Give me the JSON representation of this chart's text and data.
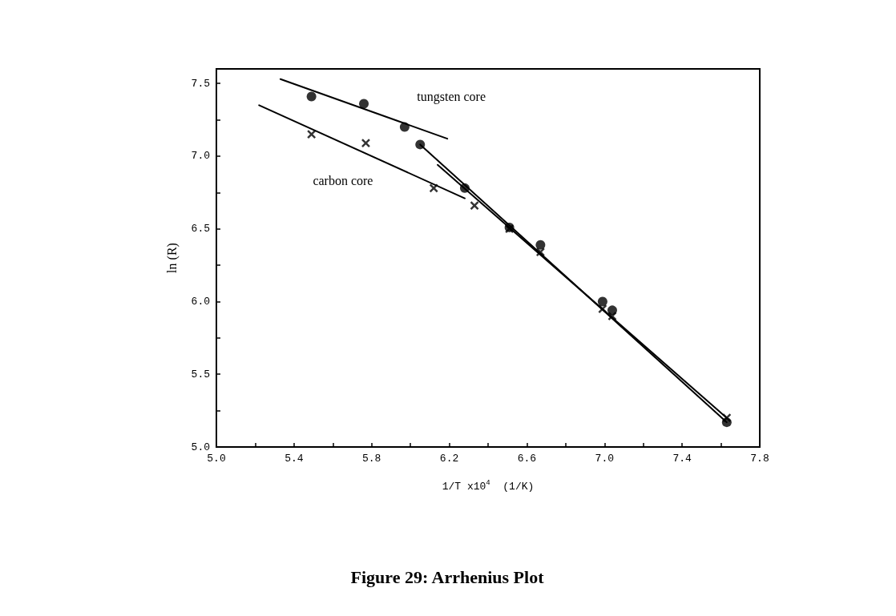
{
  "chart_data": {
    "type": "scatter",
    "title": "Figure 29: Arrhenius Plot",
    "xlabel": "1/T x10$^{4}$  (1/K)",
    "ylabel": "ln (R)",
    "xlim": [
      5.0,
      7.8
    ],
    "xticks": [
      {
        "value": 5.0,
        "label": "5.0"
      },
      {
        "value": 5.2,
        "label": null
      },
      {
        "value": 5.4,
        "label": "5.4"
      },
      {
        "value": 5.6,
        "label": null
      },
      {
        "value": 5.8,
        "label": "5.8"
      },
      {
        "value": 6.0,
        "label": null
      },
      {
        "value": 6.2,
        "label": "6.2"
      },
      {
        "value": 6.4,
        "label": null
      },
      {
        "value": 6.6,
        "label": "6.6"
      },
      {
        "value": 6.8,
        "label": null
      },
      {
        "value": 7.0,
        "label": "7.0"
      },
      {
        "value": 7.2,
        "label": null
      },
      {
        "value": 7.4,
        "label": "7.4"
      },
      {
        "value": 7.6,
        "label": null
      },
      {
        "value": 7.8,
        "label": "7.8"
      }
    ],
    "ylim": [
      5.0,
      7.6
    ],
    "yticks": [
      {
        "value": 5.0,
        "label": "5.0"
      },
      {
        "value": 5.25,
        "label": null
      },
      {
        "value": 5.5,
        "label": "5.5"
      },
      {
        "value": 5.75,
        "label": null
      },
      {
        "value": 6.0,
        "label": "6.0"
      },
      {
        "value": 6.25,
        "label": null
      },
      {
        "value": 6.5,
        "label": "6.5"
      },
      {
        "value": 6.75,
        "label": null
      },
      {
        "value": 7.0,
        "label": "7.0"
      },
      {
        "value": 7.25,
        "label": null
      },
      {
        "value": 7.5,
        "label": "7.5"
      }
    ],
    "grid": false,
    "legend": false,
    "series": [
      {
        "marker": "circle",
        "color": "#000000",
        "x": [
          5.49,
          5.76,
          5.97,
          6.05,
          6.28,
          6.51,
          6.67,
          6.99,
          7.04,
          7.63
        ],
        "values": [
          7.41,
          7.36,
          7.2,
          7.08,
          6.78,
          6.51,
          6.39,
          6.0,
          5.94,
          5.17
        ]
      },
      {
        "marker": "cross",
        "color": "#000000",
        "x": [
          5.49,
          5.77,
          6.12,
          6.33,
          6.51,
          6.67,
          6.99,
          7.04,
          7.63
        ],
        "values": [
          7.15,
          7.09,
          6.78,
          6.66,
          6.5,
          6.34,
          5.95,
          5.9,
          5.2
        ]
      },
      {
        "name": "tungsten core",
        "type": "line",
        "marker": "none",
        "line_style": "solid",
        "color": "#000000",
        "x": [
          5.33,
          6.19
        ],
        "values": [
          7.53,
          7.12
        ]
      },
      {
        "type": "line",
        "marker": "none",
        "line_style": "solid",
        "color": "#000000",
        "x": [
          6.05,
          7.63
        ],
        "values": [
          7.08,
          5.17
        ]
      },
      {
        "name": "carbon core",
        "type": "line",
        "marker": "none",
        "line_style": "solid",
        "color": "#000000",
        "x": [
          5.22,
          6.28
        ],
        "values": [
          7.35,
          6.71
        ]
      },
      {
        "type": "line",
        "marker": "none",
        "line_style": "solid",
        "color": "#000000",
        "x": [
          6.14,
          7.63
        ],
        "values": [
          6.94,
          5.2
        ]
      }
    ]
  }
}
